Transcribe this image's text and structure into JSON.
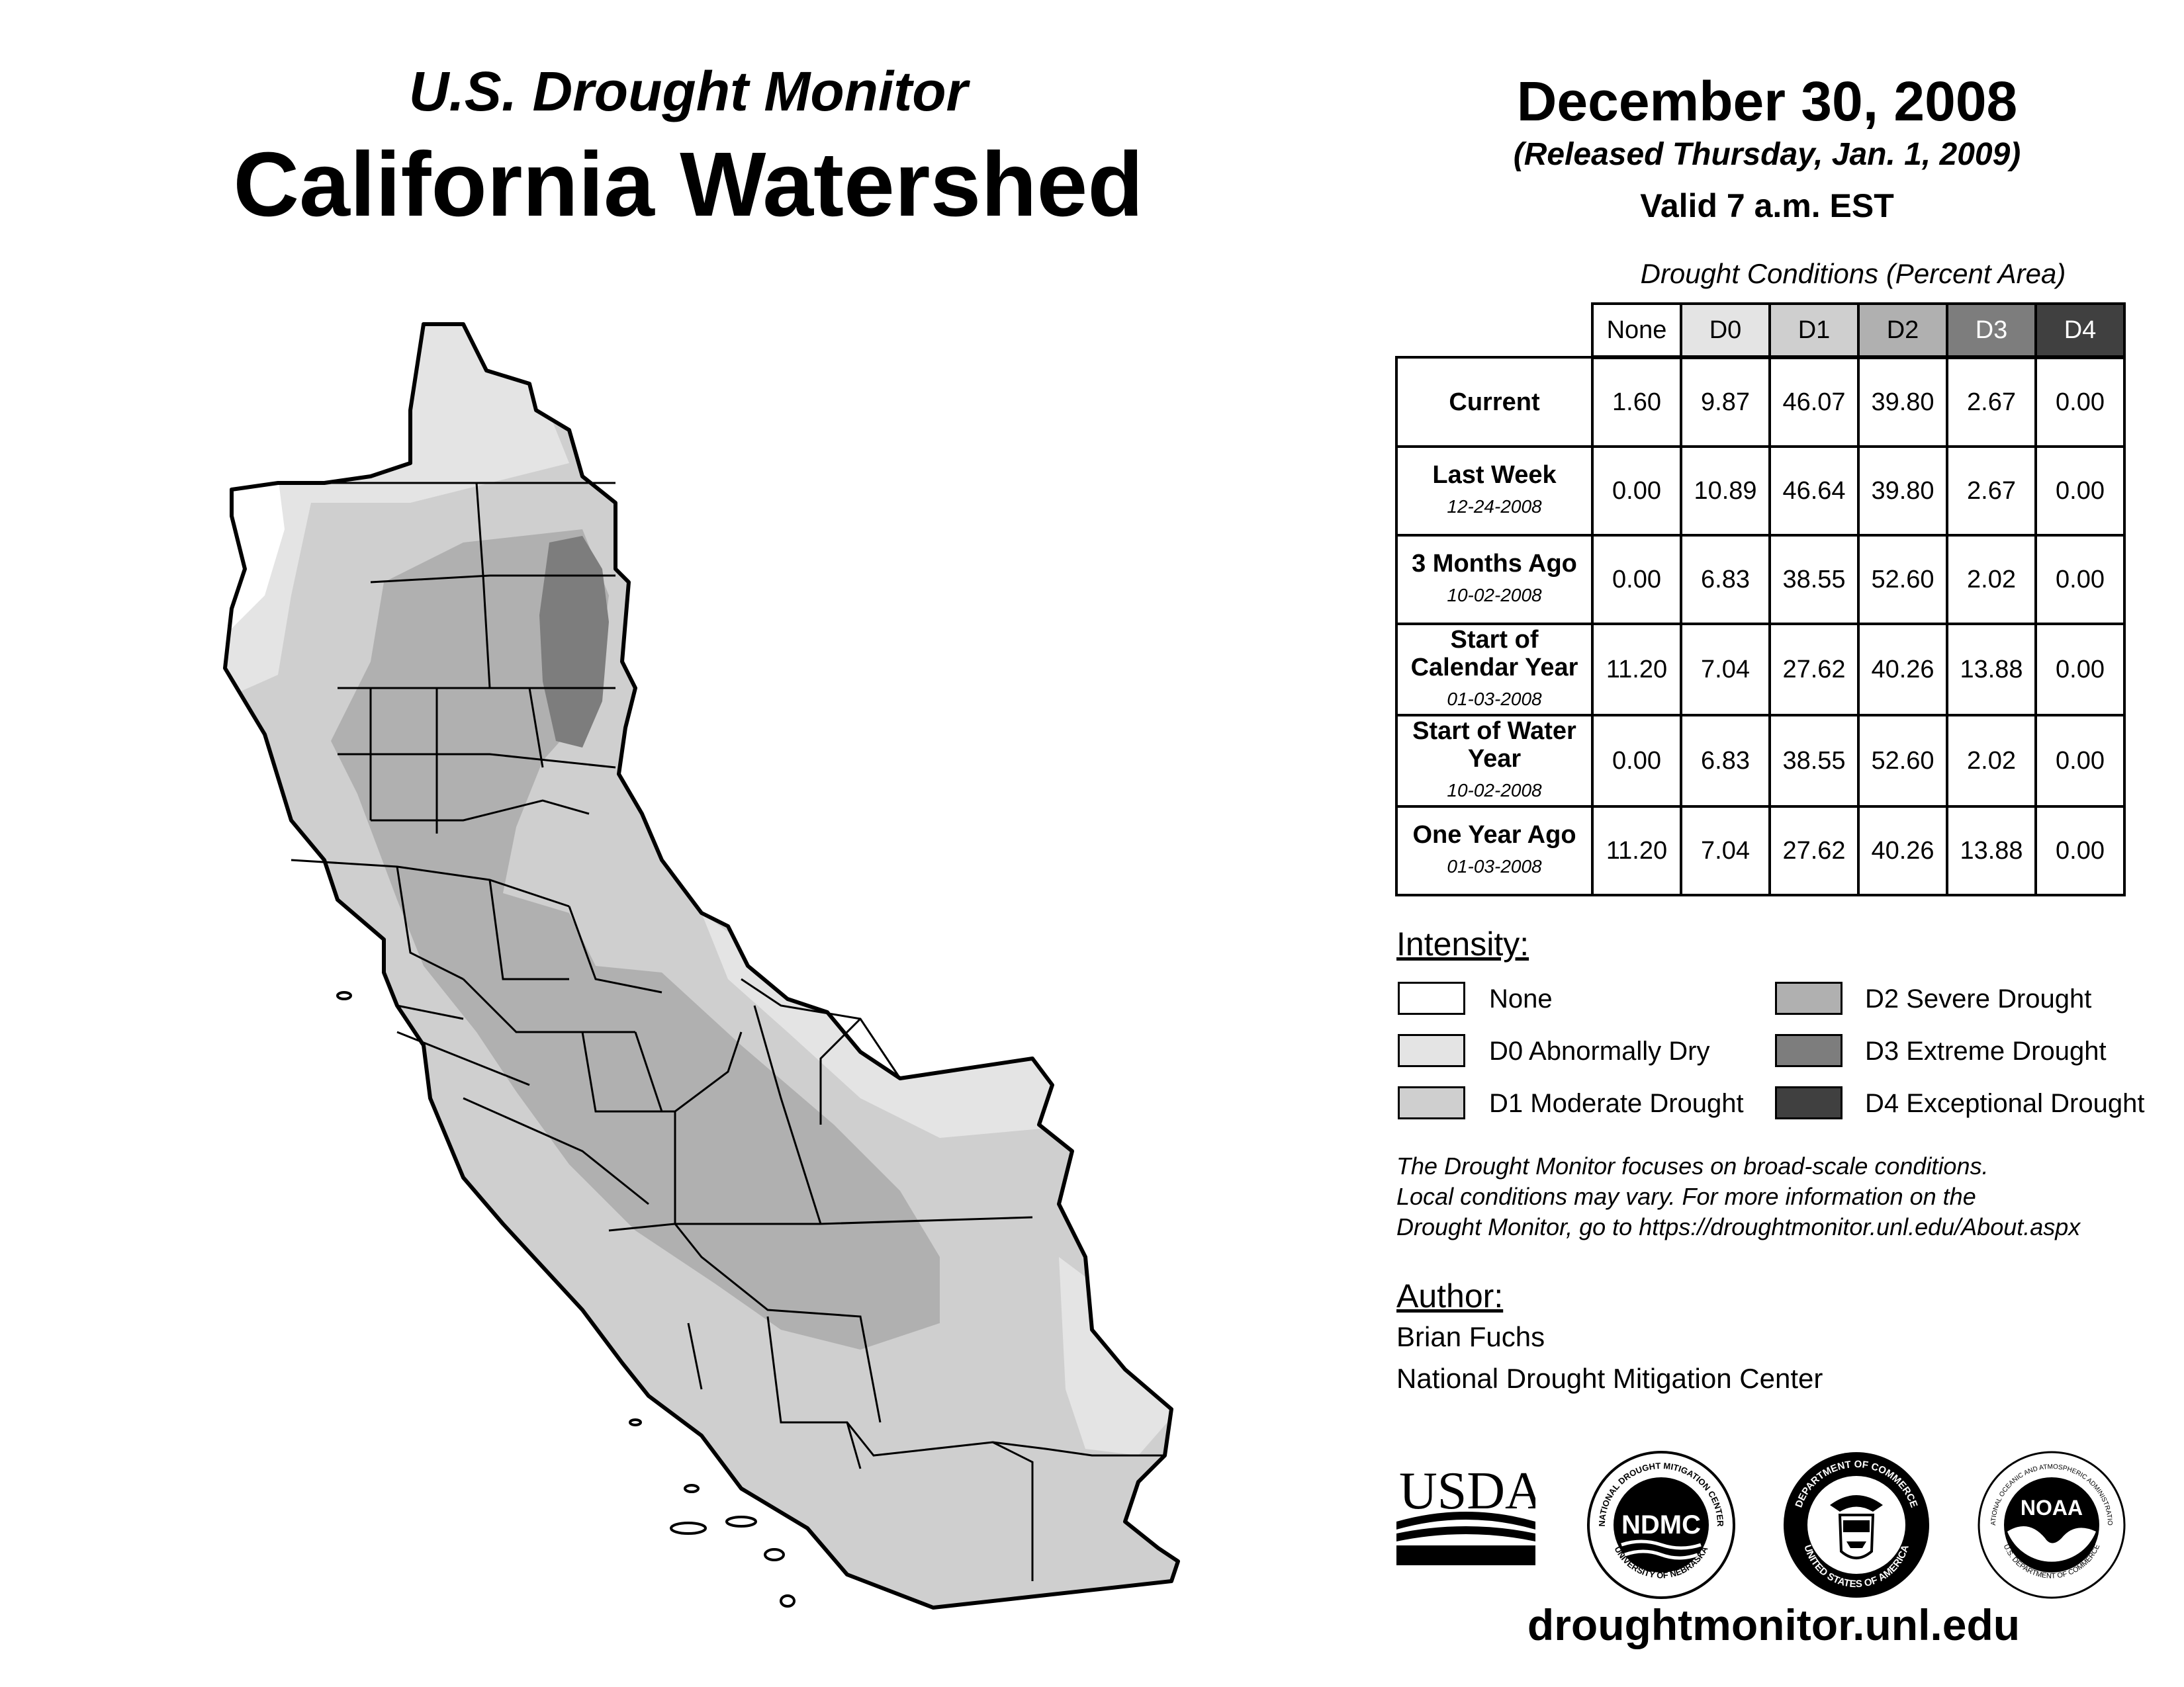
{
  "header": {
    "subtitle": "U.S. Drought Monitor",
    "title": "California Watershed",
    "date": "December 30, 2008",
    "released": "(Released Thursday, Jan. 1, 2009)",
    "valid": "Valid 7 a.m. EST"
  },
  "table": {
    "caption": "Drought Conditions (Percent Area)",
    "columns": [
      "None",
      "D0",
      "D1",
      "D2",
      "D3",
      "D4"
    ],
    "column_colors": [
      "#ffffff",
      "#e4e4e4",
      "#cfcfcf",
      "#b0b0b0",
      "#7d7d7d",
      "#404040"
    ],
    "rows": [
      {
        "label": "Current",
        "date": "",
        "values": [
          "1.60",
          "9.87",
          "46.07",
          "39.80",
          "2.67",
          "0.00"
        ]
      },
      {
        "label": "Last Week",
        "date": "12-24-2008",
        "values": [
          "0.00",
          "10.89",
          "46.64",
          "39.80",
          "2.67",
          "0.00"
        ]
      },
      {
        "label": "3 Months Ago",
        "date": "10-02-2008",
        "values": [
          "0.00",
          "6.83",
          "38.55",
          "52.60",
          "2.02",
          "0.00"
        ]
      },
      {
        "label": "Start of Calendar Year",
        "date": "01-03-2008",
        "values": [
          "11.20",
          "7.04",
          "27.62",
          "40.26",
          "13.88",
          "0.00"
        ]
      },
      {
        "label": "Start of Water Year",
        "date": "10-02-2008",
        "values": [
          "0.00",
          "6.83",
          "38.55",
          "52.60",
          "2.02",
          "0.00"
        ]
      },
      {
        "label": "One Year Ago",
        "date": "01-03-2008",
        "values": [
          "11.20",
          "7.04",
          "27.62",
          "40.26",
          "13.88",
          "0.00"
        ]
      }
    ]
  },
  "legend": {
    "heading": "Intensity:",
    "items": [
      {
        "label": "None",
        "color": "#ffffff"
      },
      {
        "label": "D0 Abnormally Dry",
        "color": "#e4e4e4"
      },
      {
        "label": "D1 Moderate Drought",
        "color": "#cfcfcf"
      },
      {
        "label": "D2 Severe Drought",
        "color": "#b0b0b0"
      },
      {
        "label": "D3 Extreme Drought",
        "color": "#7d7d7d"
      },
      {
        "label": "D4 Exceptional Drought",
        "color": "#404040"
      }
    ]
  },
  "note": {
    "line1": "The Drought Monitor focuses on broad-scale conditions.",
    "line2": "Local conditions may vary. For more information on the",
    "line3": "Drought Monitor, go to https://droughtmonitor.unl.edu/About.aspx"
  },
  "author": {
    "heading": "Author:",
    "name": "Brian Fuchs",
    "org": "National Drought Mitigation Center"
  },
  "logos": {
    "usda": "USDA",
    "ndmc": "NDMC",
    "ndmc_ring_top": "NATIONAL DROUGHT MITIGATION CENTER",
    "ndmc_ring_bottom": "UNIVERSITY OF NEBRASKA",
    "doc_ring_top": "DEPARTMENT OF COMMERCE",
    "doc_ring_bottom": "UNITED STATES OF AMERICA",
    "noaa": "NOAA",
    "noaa_ring_top": "NATIONAL OCEANIC AND ATMOSPHERIC ADMINISTRATION",
    "noaa_ring_bottom": "U.S. DEPARTMENT OF COMMERCE"
  },
  "footer": {
    "url": "droughtmonitor.unl.edu"
  },
  "map": {
    "region": "California Watershed",
    "colors": {
      "none": "#ffffff",
      "d0": "#e4e4e4",
      "d1": "#cfcfcf",
      "d2": "#b0b0b0",
      "d3": "#7d7d7d",
      "outline": "#000000"
    }
  }
}
